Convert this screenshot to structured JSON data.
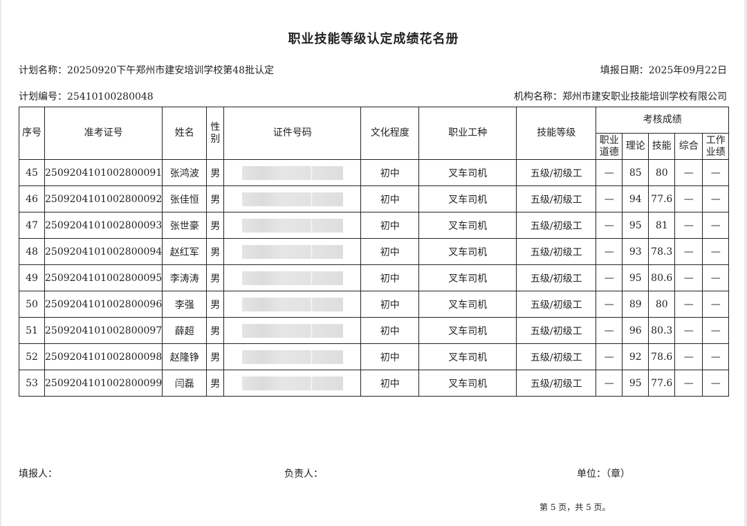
{
  "title": "职业技能等级认定成绩花名册",
  "plan_name": "计划名称：20250920下午郑州市建安培训学校第48批认定",
  "fill_date": "填报日期：2025年09月22日",
  "plan_no": "计划编号：25410100280048",
  "org_name": "机构名称：郑州市建安职业技能培训学校有限公司",
  "table": {
    "headers": {
      "seq": "序号",
      "exam_no": "准考证号",
      "name": "姓名",
      "gender": "性别",
      "id_no": "证件号码",
      "education": "文化程度",
      "occupation": "职业工种",
      "level": "技能等级",
      "scores": "考核成绩",
      "ethics": "职业道德",
      "theory": "理论",
      "skill": "技能",
      "overall": "综合",
      "work": "工作业绩"
    },
    "rows": [
      {
        "seq": "45",
        "exam_no": "2509204101002800091",
        "name": "张鸿波",
        "gender": "男",
        "education": "初中",
        "occupation": "叉车司机",
        "level": "五级/初级工",
        "ethics": "—",
        "theory": "85",
        "skill": "80",
        "overall": "—",
        "work": "—"
      },
      {
        "seq": "46",
        "exam_no": "2509204101002800092",
        "name": "张佳恒",
        "gender": "男",
        "education": "初中",
        "occupation": "叉车司机",
        "level": "五级/初级工",
        "ethics": "—",
        "theory": "94",
        "skill": "77.6",
        "overall": "—",
        "work": "—"
      },
      {
        "seq": "47",
        "exam_no": "2509204101002800093",
        "name": "张世豪",
        "gender": "男",
        "education": "初中",
        "occupation": "叉车司机",
        "level": "五级/初级工",
        "ethics": "—",
        "theory": "95",
        "skill": "81",
        "overall": "—",
        "work": "—"
      },
      {
        "seq": "48",
        "exam_no": "2509204101002800094",
        "name": "赵红军",
        "gender": "男",
        "education": "初中",
        "occupation": "叉车司机",
        "level": "五级/初级工",
        "ethics": "—",
        "theory": "93",
        "skill": "78.3",
        "overall": "—",
        "work": "—"
      },
      {
        "seq": "49",
        "exam_no": "2509204101002800095",
        "name": "李涛涛",
        "gender": "男",
        "education": "初中",
        "occupation": "叉车司机",
        "level": "五级/初级工",
        "ethics": "—",
        "theory": "95",
        "skill": "80.6",
        "overall": "—",
        "work": "—"
      },
      {
        "seq": "50",
        "exam_no": "2509204101002800096",
        "name": "李强",
        "gender": "男",
        "education": "初中",
        "occupation": "叉车司机",
        "level": "五级/初级工",
        "ethics": "—",
        "theory": "89",
        "skill": "80",
        "overall": "—",
        "work": "—"
      },
      {
        "seq": "51",
        "exam_no": "2509204101002800097",
        "name": "薛超",
        "gender": "男",
        "education": "初中",
        "occupation": "叉车司机",
        "level": "五级/初级工",
        "ethics": "—",
        "theory": "96",
        "skill": "80.3",
        "overall": "—",
        "work": "—"
      },
      {
        "seq": "52",
        "exam_no": "2509204101002800098",
        "name": "赵隆铮",
        "gender": "男",
        "education": "初中",
        "occupation": "叉车司机",
        "level": "五级/初级工",
        "ethics": "—",
        "theory": "92",
        "skill": "78.6",
        "overall": "—",
        "work": "—"
      },
      {
        "seq": "53",
        "exam_no": "2509204101002800099",
        "name": "闫磊",
        "gender": "男",
        "education": "初中",
        "occupation": "叉车司机",
        "level": "五级/初级工",
        "ethics": "—",
        "theory": "95",
        "skill": "77.6",
        "overall": "—",
        "work": "—"
      }
    ]
  },
  "footer": {
    "filler": "填报人：",
    "responsible": "负责人：",
    "unit": "单位：（章）",
    "page": "第 5 页，共 5 页。"
  }
}
